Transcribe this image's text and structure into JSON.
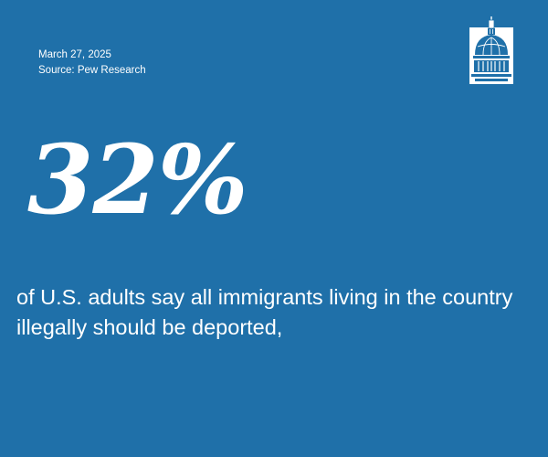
{
  "date": "March 27, 2025",
  "source": "Source: Pew Research",
  "statistic": "32%",
  "caption": "of U.S. adults say all immigrants living in the country illegally should be deported,",
  "colors": {
    "background": "#1f70a9",
    "text": "#ffffff"
  },
  "logo_icon": "capitol-dome-icon"
}
